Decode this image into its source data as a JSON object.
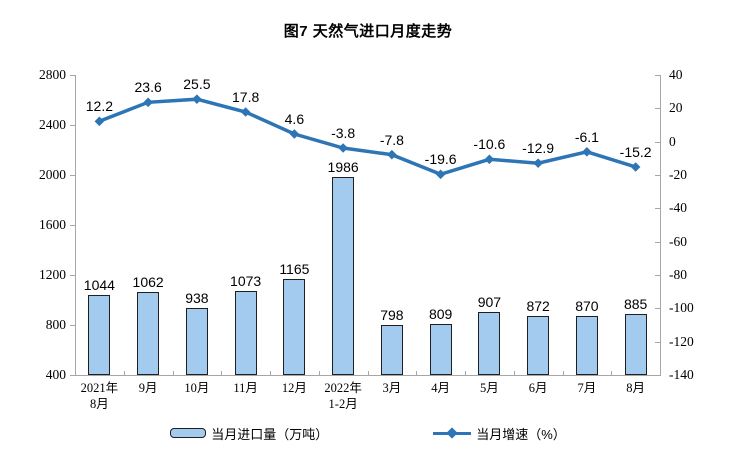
{
  "title": "图7 天然气进口月度走势",
  "colors": {
    "bar_fill": "#A3CBEF",
    "bar_border": "#1f1f1f",
    "line": "#2E75B6",
    "axis": "#a6a6a6",
    "text": "#000000"
  },
  "legend": {
    "bar_label": "当月进口量（万吨）",
    "line_label": "当月增速（%）"
  },
  "chart_data": {
    "type": "bar",
    "subtype": "bar+line combo, dual axis",
    "title": "图7 天然气进口月度走势",
    "categories": [
      "2021年\n8月",
      "9月",
      "10月",
      "11月",
      "12月",
      "2022年\n1-2月",
      "3月",
      "4月",
      "5月",
      "6月",
      "7月",
      "8月"
    ],
    "series": [
      {
        "name": "当月进口量（万吨）",
        "type": "bar",
        "axis": "left",
        "values": [
          1044,
          1062,
          938,
          1073,
          1165,
          1986,
          798,
          809,
          907,
          872,
          870,
          885
        ]
      },
      {
        "name": "当月增速（%）",
        "type": "line",
        "axis": "right",
        "values": [
          12.2,
          23.6,
          25.5,
          17.8,
          4.6,
          -3.8,
          -7.8,
          -19.6,
          -10.6,
          -12.9,
          -6.1,
          -15.2
        ]
      }
    ],
    "left_axis": {
      "min": 400,
      "max": 2800,
      "step": 400,
      "ticks": [
        400,
        800,
        1200,
        1600,
        2000,
        2400,
        2800
      ]
    },
    "right_axis": {
      "min": -140,
      "max": 40,
      "step": 20,
      "ticks": [
        40,
        20,
        0,
        -20,
        -40,
        -60,
        -80,
        -100,
        -120,
        -140
      ]
    },
    "grid": false,
    "legend_position": "bottom",
    "data_labels": true
  }
}
